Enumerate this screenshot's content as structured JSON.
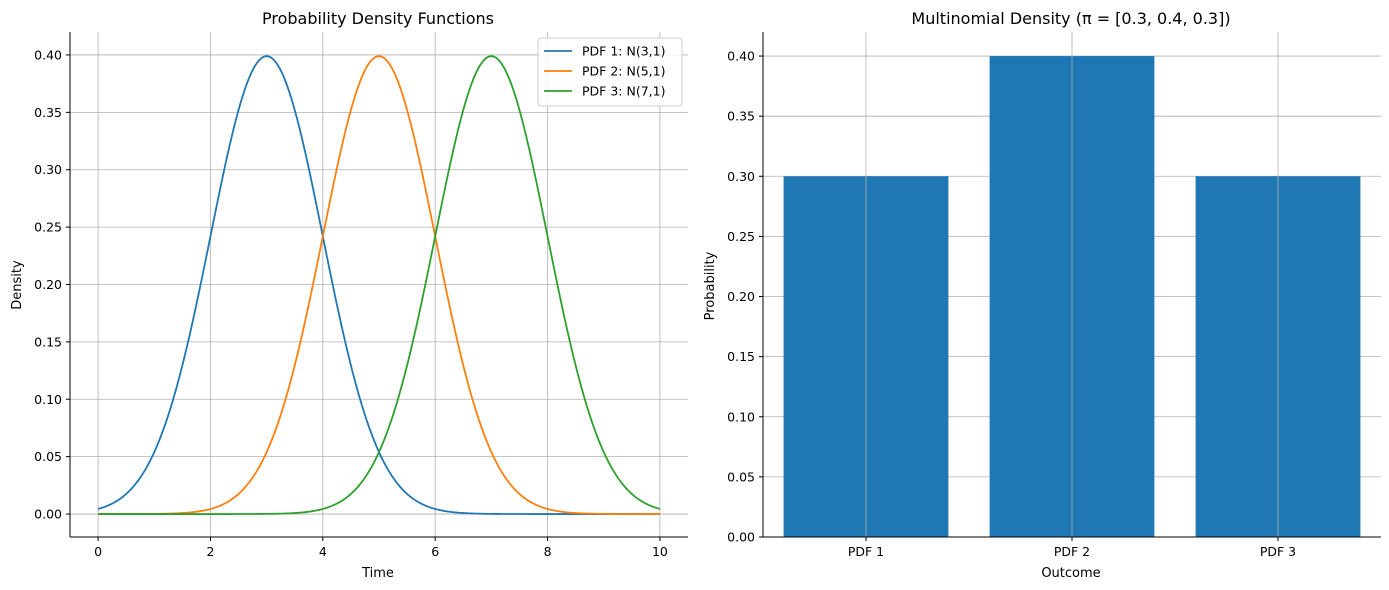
{
  "chart_data": [
    {
      "type": "line",
      "title": "Probability Density Functions",
      "xlabel": "Time",
      "ylabel": "Density",
      "xlim": [
        -0.5,
        10.5
      ],
      "ylim": [
        -0.02,
        0.42
      ],
      "xticks": [
        0,
        2,
        4,
        6,
        8,
        10
      ],
      "xtick_labels": [
        "0",
        "2",
        "4",
        "6",
        "8",
        "10"
      ],
      "yticks": [
        0,
        0.05,
        0.1,
        0.15,
        0.2,
        0.25,
        0.3,
        0.35,
        0.4
      ],
      "ytick_labels": [
        "0.00",
        "0.05",
        "0.10",
        "0.15",
        "0.20",
        "0.25",
        "0.30",
        "0.35",
        "0.40"
      ],
      "grid": true,
      "legend_position": "top-right",
      "x": [
        0,
        0.5,
        1,
        1.5,
        2,
        2.5,
        3,
        3.5,
        4,
        4.5,
        5,
        5.5,
        6,
        6.5,
        7,
        7.5,
        8,
        8.5,
        9,
        9.5,
        10
      ],
      "series": [
        {
          "name": "PDF 1: N(3,1)",
          "color": "#1f77b4",
          "mean": 3,
          "sd": 1,
          "values": [
            0.0044,
            0.0175,
            0.054,
            0.1295,
            0.242,
            0.3521,
            0.3989,
            0.3521,
            0.242,
            0.1295,
            0.054,
            0.0175,
            0.0044,
            0.0009,
            0.0001,
            0.0,
            0.0,
            0.0,
            0.0,
            0.0,
            0.0
          ]
        },
        {
          "name": "PDF 2: N(5,1)",
          "color": "#ff7f0e",
          "mean": 5,
          "sd": 1,
          "values": [
            0.0,
            0.0,
            0.0001,
            0.0009,
            0.0044,
            0.0175,
            0.054,
            0.1295,
            0.242,
            0.3521,
            0.3989,
            0.3521,
            0.242,
            0.1295,
            0.054,
            0.0175,
            0.0044,
            0.0009,
            0.0001,
            0.0,
            0.0
          ]
        },
        {
          "name": "PDF 3: N(7,1)",
          "color": "#2ca02c",
          "mean": 7,
          "sd": 1,
          "values": [
            0.0,
            0.0,
            0.0,
            0.0,
            0.0,
            0.0,
            0.0001,
            0.0009,
            0.0044,
            0.0175,
            0.054,
            0.1295,
            0.242,
            0.3521,
            0.3989,
            0.3521,
            0.242,
            0.1295,
            0.054,
            0.0175,
            0.0044
          ]
        }
      ]
    },
    {
      "type": "bar",
      "title": "Multinomial Density (π = [0.3, 0.4, 0.3])",
      "xlabel": "Outcome",
      "ylabel": "Probability",
      "categories": [
        "PDF 1",
        "PDF 2",
        "PDF 3"
      ],
      "values": [
        0.3,
        0.4,
        0.3
      ],
      "color": "#1f77b4",
      "ylim": [
        0,
        0.42
      ],
      "yticks": [
        0,
        0.05,
        0.1,
        0.15,
        0.2,
        0.25,
        0.3,
        0.35,
        0.4
      ],
      "ytick_labels": [
        "0.00",
        "0.05",
        "0.10",
        "0.15",
        "0.20",
        "0.25",
        "0.30",
        "0.35",
        "0.40"
      ],
      "grid": true
    }
  ]
}
